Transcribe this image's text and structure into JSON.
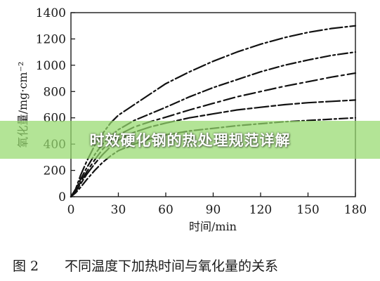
{
  "chart_data": {
    "type": "line",
    "xlabel": "时间/min",
    "ylabel": "氧化量/mg·cm⁻²",
    "xlim": [
      0,
      180
    ],
    "ylim": [
      0,
      1400
    ],
    "xticks": [
      "0",
      "30",
      "60",
      "90",
      "120",
      "150",
      "180"
    ],
    "yticks": [
      "0",
      "200",
      "400",
      "600",
      "800",
      "1000",
      "1200",
      "1400"
    ],
    "grid": false,
    "series": [
      {
        "x": [
          0,
          3,
          6,
          10,
          15,
          20,
          25,
          30,
          35,
          40,
          50,
          60,
          75,
          90,
          105,
          120,
          135,
          150,
          165,
          180
        ],
        "y": [
          0,
          60,
          160,
          270,
          390,
          480,
          560,
          620,
          660,
          700,
          780,
          860,
          950,
          1030,
          1100,
          1160,
          1210,
          1250,
          1280,
          1300
        ]
      },
      {
        "x": [
          0,
          3,
          6,
          10,
          15,
          20,
          25,
          30,
          40,
          50,
          60,
          75,
          90,
          105,
          120,
          135,
          150,
          165,
          180
        ],
        "y": [
          0,
          50,
          130,
          220,
          320,
          400,
          460,
          510,
          580,
          630,
          680,
          760,
          830,
          890,
          950,
          1000,
          1040,
          1075,
          1100
        ]
      },
      {
        "x": [
          0,
          3,
          6,
          10,
          15,
          20,
          25,
          30,
          40,
          50,
          60,
          75,
          90,
          105,
          120,
          135,
          150,
          165,
          180
        ],
        "y": [
          0,
          45,
          110,
          190,
          280,
          360,
          420,
          470,
          530,
          570,
          605,
          660,
          710,
          760,
          800,
          840,
          875,
          910,
          940
        ]
      },
      {
        "x": [
          0,
          3,
          6,
          10,
          15,
          20,
          25,
          30,
          40,
          50,
          60,
          75,
          90,
          105,
          120,
          135,
          150,
          165,
          180
        ],
        "y": [
          0,
          40,
          95,
          170,
          250,
          320,
          380,
          430,
          490,
          530,
          560,
          600,
          630,
          660,
          680,
          700,
          715,
          725,
          735
        ]
      },
      {
        "x": [
          0,
          3,
          6,
          10,
          15,
          20,
          25,
          30,
          40,
          50,
          60,
          75,
          90,
          105,
          120,
          135,
          150,
          165,
          180
        ],
        "y": [
          0,
          30,
          70,
          130,
          200,
          260,
          310,
          350,
          400,
          440,
          470,
          500,
          520,
          540,
          555,
          570,
          580,
          590,
          600
        ]
      }
    ]
  },
  "caption": {
    "figure_no": "图 2",
    "text": "不同温度下加热时间与氧化量的关系"
  },
  "banner": {
    "text": "时效硬化钢的热处理规范详解",
    "color": "#96da6e"
  }
}
